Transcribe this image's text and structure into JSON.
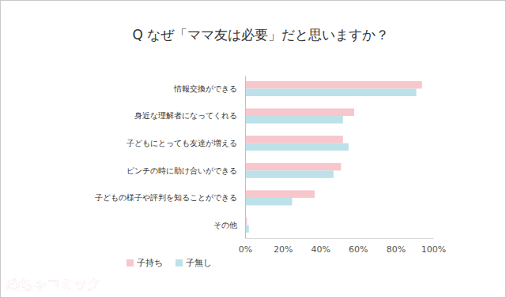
{
  "chart_data": {
    "type": "bar",
    "orientation": "horizontal",
    "title": "Q なぜ「ママ友は必要」だと思いますか？",
    "categories": [
      "情報交換ができる",
      "身近な理解者になってくれる",
      "子どもにとっても友達が増える",
      "ピンチの時に助け合いができる",
      "子どもの様子や評判を知ることができる",
      "その他"
    ],
    "series": [
      {
        "name": "子持ち",
        "color": "#f8c6cd",
        "values": [
          94,
          58,
          52,
          51,
          37,
          1
        ]
      },
      {
        "name": "子無し",
        "color": "#bde1e8",
        "values": [
          91,
          52,
          55,
          47,
          25,
          2
        ]
      }
    ],
    "xlim": [
      0,
      100
    ],
    "xticks": [
      {
        "value": 0,
        "label": "0%"
      },
      {
        "value": 20,
        "label": "20%"
      },
      {
        "value": 40,
        "label": "40%"
      },
      {
        "value": 60,
        "label": "60%"
      },
      {
        "value": 80,
        "label": "80%"
      },
      {
        "value": 100,
        "label": "100%"
      }
    ],
    "grid": false,
    "legend": "bottom-left",
    "annotations": [
      "めちゃコミック"
    ]
  }
}
